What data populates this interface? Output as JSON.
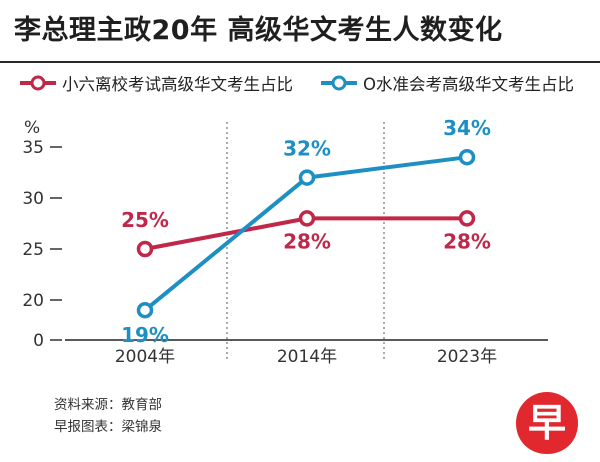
{
  "title": "李总理主政20年  高级华文考生人数变化",
  "chart_data": {
    "type": "line",
    "ylabel": "%",
    "ylim": [
      0,
      35
    ],
    "yticks": [
      0,
      20,
      25,
      30,
      35
    ],
    "categories": [
      "2004年",
      "2014年",
      "2023年"
    ],
    "series": [
      {
        "name": "小六离校考试高级华文考生占比",
        "color": "#c0284a",
        "values": [
          25,
          28,
          28
        ],
        "labels": [
          "25%",
          "28%",
          "28%"
        ]
      },
      {
        "name": "O水准会考高级华文考生占比",
        "color": "#1e8fc3",
        "values": [
          19,
          32,
          34
        ],
        "labels": [
          "19%",
          "32%",
          "34%"
        ]
      }
    ]
  },
  "footer": {
    "source": "资料来源：教育部",
    "credit": "早报图表：梁锦泉"
  },
  "logo": {
    "char": "早",
    "color": "#e0282e"
  }
}
